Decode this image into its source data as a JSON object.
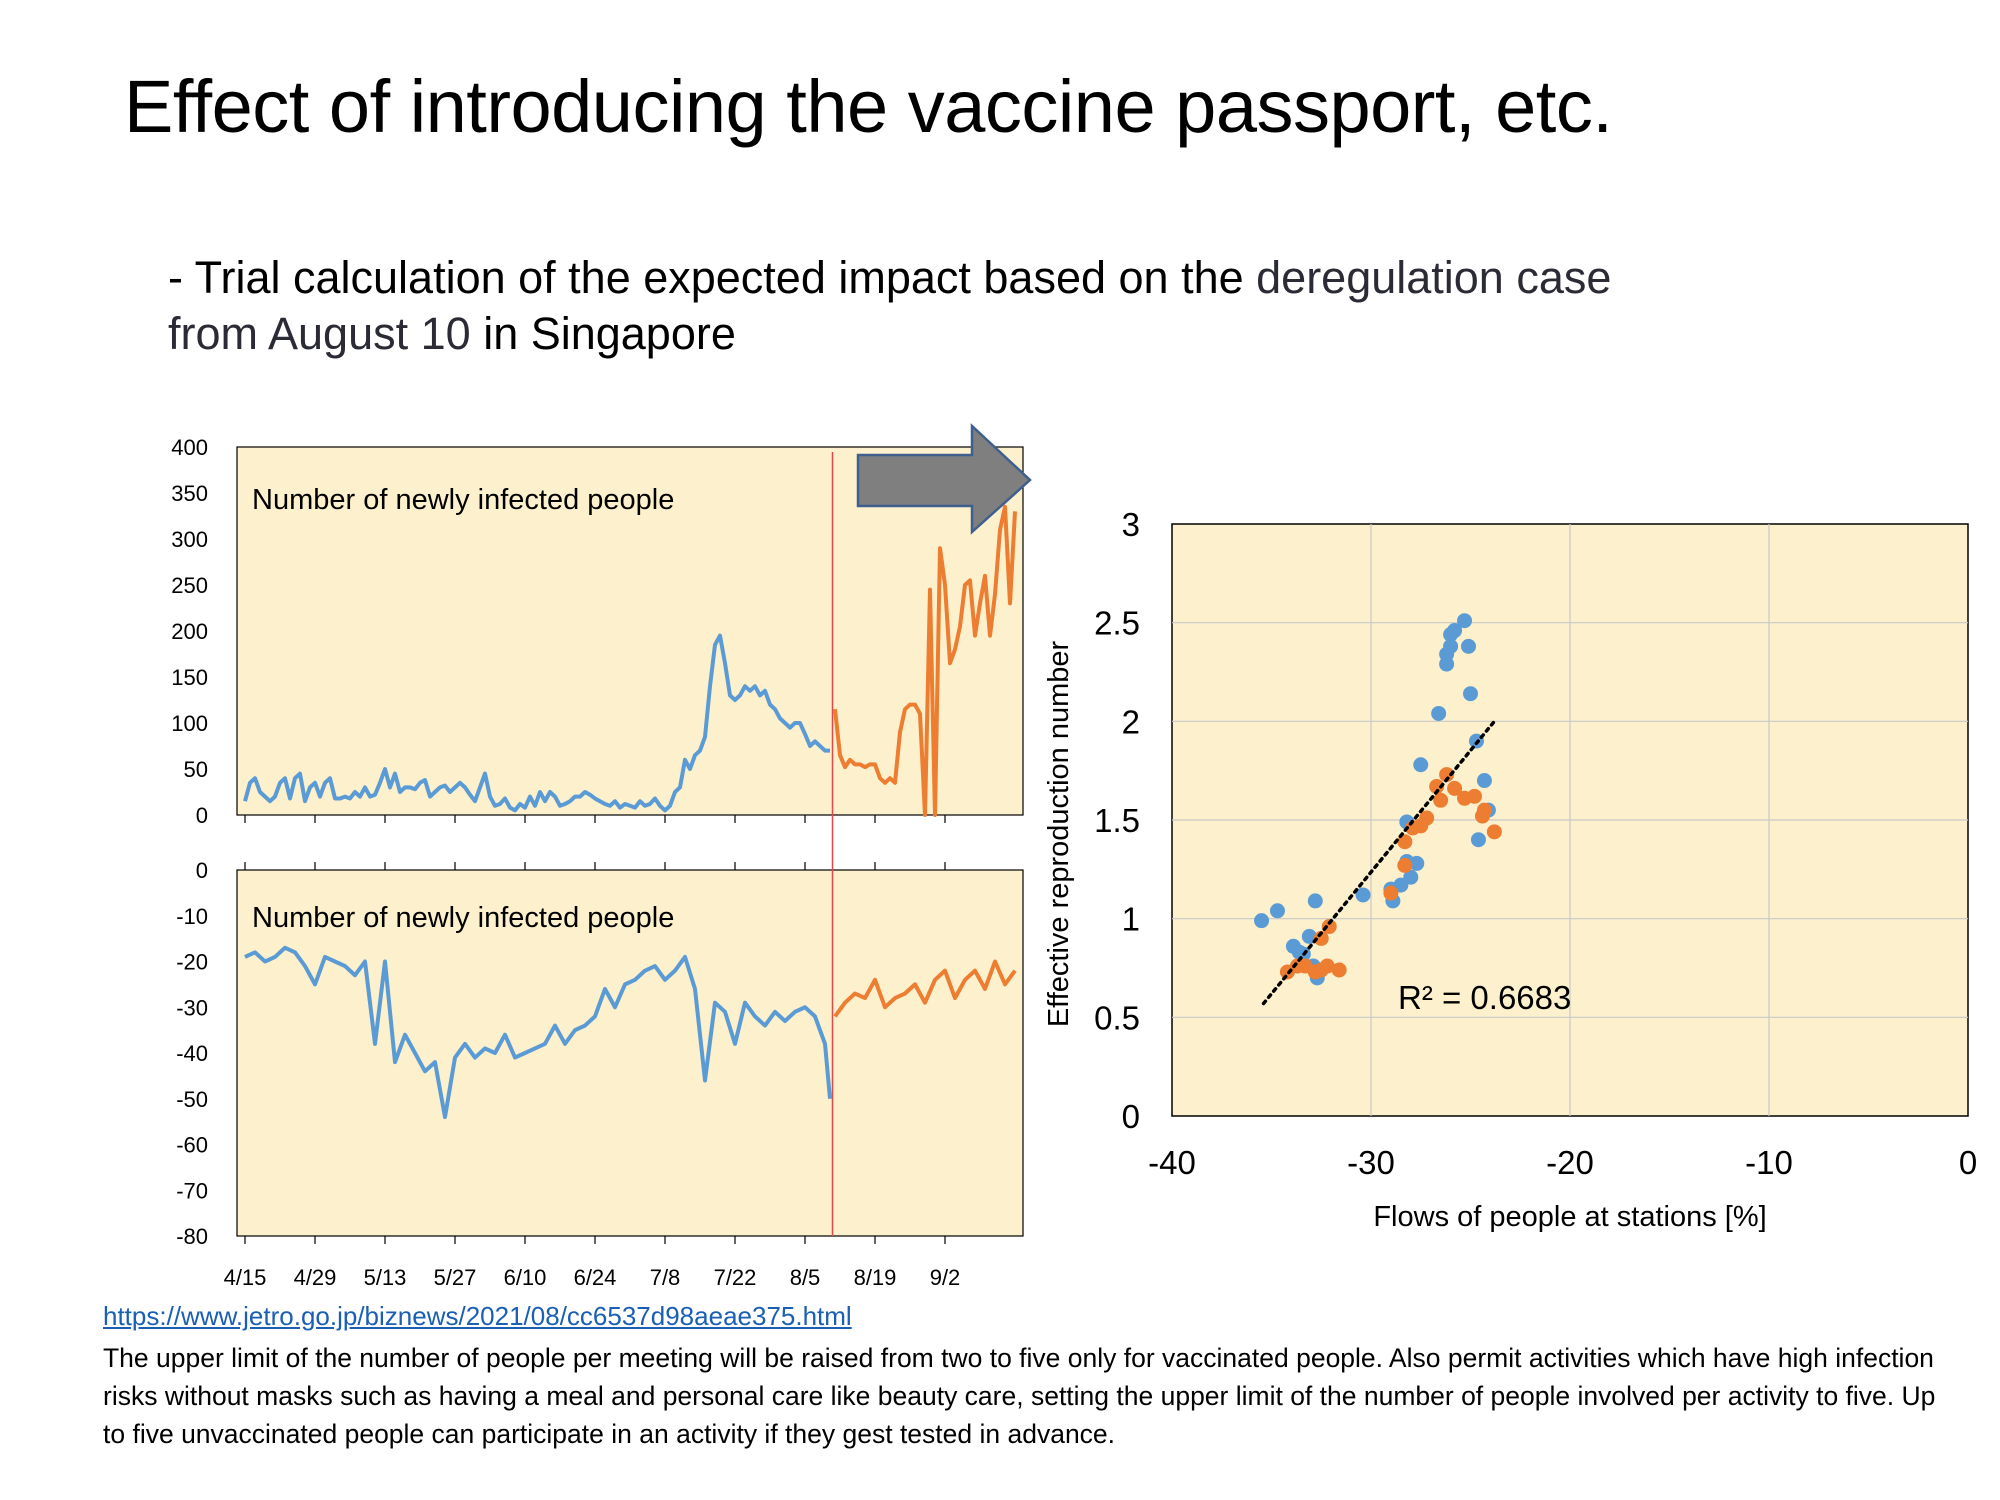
{
  "slide": {
    "title": "Effect of introducing the vaccine passport, etc.",
    "subtitle_plain": "- Trial calculation of the expected impact based on the ",
    "subtitle_highlight_1": "deregulation case",
    "subtitle_highlight_2": "from August 10",
    "subtitle_end": " in Singapore",
    "source_url": "https://www.jetro.go.jp/biznews/2021/08/cc6537d98aeae375.html",
    "footnote": "The upper limit of the number of people per meeting will be raised from two to five only for vaccinated people. Also permit activities which have high infection risks without masks such as having a meal and personal care like beauty care, setting the upper limit of the number of people involved per activity to five. Up to five unvaccinated people can participate in an activity if they gest tested in advance."
  },
  "colors": {
    "plot_bg": "#fdf0cc",
    "before": "#5b9bd5",
    "after": "#ed7d31",
    "divider": "#e0484a",
    "arrow": "#7f7f7f",
    "arrow_edge": "#3f5f8f"
  },
  "chart_data": [
    {
      "type": "line",
      "title": "Number of newly infected people",
      "x_tick_labels": [
        "4/15",
        "4/29",
        "5/13",
        "5/27",
        "6/10",
        "6/24",
        "7/8",
        "7/22",
        "8/5",
        "8/19",
        "9/2"
      ],
      "ylim": [
        0,
        400
      ],
      "yticks": [
        0,
        50,
        100,
        150,
        200,
        250,
        300,
        350,
        400
      ],
      "grid": false,
      "series": [
        {
          "segment": "before",
          "x": [
            0,
            1,
            2,
            3,
            4,
            5,
            6,
            7,
            8,
            9,
            10,
            11,
            12,
            13,
            14,
            15,
            16,
            17,
            18,
            19,
            20,
            21,
            22,
            23,
            24,
            25,
            26,
            27,
            28,
            29,
            30,
            31,
            32,
            33,
            34,
            35,
            36,
            37,
            38,
            39,
            40,
            41,
            42,
            43,
            44,
            45,
            46,
            47,
            48,
            49,
            50,
            51,
            52,
            53,
            54,
            55,
            56,
            57,
            58,
            59,
            60,
            61,
            62,
            63,
            64,
            65,
            66,
            67,
            68,
            69,
            70,
            71,
            72,
            73,
            74,
            75,
            76,
            77,
            78,
            79,
            80,
            81,
            82,
            83,
            84,
            85,
            86,
            87,
            88,
            89,
            90,
            91,
            92,
            93,
            94,
            95,
            96,
            97,
            98,
            99,
            100,
            101,
            102,
            103,
            104,
            105,
            106,
            107,
            108,
            109,
            110,
            111,
            112,
            113,
            114,
            115,
            116,
            117
          ],
          "values": [
            15,
            35,
            40,
            25,
            20,
            15,
            20,
            35,
            40,
            18,
            40,
            45,
            15,
            30,
            35,
            20,
            35,
            40,
            18,
            18,
            20,
            18,
            25,
            20,
            30,
            20,
            22,
            35,
            50,
            30,
            45,
            25,
            30,
            30,
            28,
            35,
            38,
            20,
            25,
            30,
            32,
            25,
            30,
            35,
            30,
            22,
            15,
            30,
            45,
            20,
            10,
            12,
            18,
            8,
            5,
            12,
            8,
            20,
            10,
            25,
            15,
            25,
            20,
            10,
            12,
            15,
            20,
            20,
            25,
            22,
            18,
            15,
            12,
            10,
            15,
            8,
            12,
            10,
            8,
            15,
            10,
            12,
            18,
            10,
            5,
            10,
            25,
            30,
            60,
            50,
            65,
            70,
            85,
            140,
            185,
            195,
            165,
            130,
            125,
            130,
            140,
            135,
            140,
            130,
            135,
            120,
            115,
            105,
            100,
            95,
            100,
            100,
            88,
            75,
            80,
            75,
            70,
            70
          ]
        },
        {
          "segment": "after",
          "x": [
            118,
            119,
            120,
            121,
            122,
            123,
            124,
            125,
            126,
            127,
            128,
            129,
            130,
            131,
            132,
            133,
            134,
            135,
            136,
            137,
            138,
            139,
            140,
            141,
            142,
            143,
            144,
            145,
            146,
            147,
            148,
            149,
            150,
            151,
            152,
            153,
            154
          ],
          "values": [
            115,
            65,
            52,
            60,
            55,
            55,
            52,
            55,
            55,
            40,
            35,
            40,
            35,
            90,
            115,
            120,
            120,
            110,
            0,
            245,
            0,
            290,
            250,
            165,
            180,
            205,
            250,
            255,
            195,
            230,
            260,
            195,
            240,
            310,
            335,
            230,
            330
          ]
        }
      ]
    },
    {
      "type": "line",
      "title": "Number of newly infected people",
      "x_tick_labels": [
        "4/15",
        "4/29",
        "5/13",
        "5/27",
        "6/10",
        "6/24",
        "7/8",
        "7/22",
        "8/5",
        "8/19",
        "9/2"
      ],
      "ylim": [
        -80,
        0
      ],
      "yticks": [
        0,
        -10,
        -20,
        -30,
        -40,
        -50,
        -60,
        -70,
        -80
      ],
      "grid": false,
      "series": [
        {
          "segment": "before",
          "x": [
            0,
            2,
            4,
            6,
            8,
            10,
            12,
            14,
            16,
            18,
            20,
            22,
            24,
            26,
            28,
            30,
            32,
            34,
            36,
            38,
            40,
            42,
            44,
            46,
            48,
            50,
            52,
            54,
            56,
            58,
            60,
            62,
            64,
            66,
            68,
            70,
            72,
            74,
            76,
            78,
            80,
            82,
            84,
            86,
            88,
            90,
            92,
            94,
            96,
            98,
            100,
            102,
            104,
            106,
            108,
            110,
            112,
            114,
            116,
            117
          ],
          "values": [
            -19,
            -18,
            -20,
            -19,
            -17,
            -18,
            -21,
            -25,
            -19,
            -20,
            -21,
            -23,
            -20,
            -38,
            -20,
            -42,
            -36,
            -40,
            -44,
            -42,
            -54,
            -41,
            -38,
            -41,
            -39,
            -40,
            -36,
            -41,
            -40,
            -39,
            -38,
            -34,
            -38,
            -35,
            -34,
            -32,
            -26,
            -30,
            -25,
            -24,
            -22,
            -21,
            -24,
            -22,
            -19,
            -26,
            -46,
            -29,
            -31,
            -38,
            -29,
            -32,
            -34,
            -31,
            -33,
            -31,
            -30,
            -32,
            -38,
            -50
          ]
        },
        {
          "segment": "after",
          "x": [
            118,
            120,
            122,
            124,
            126,
            128,
            130,
            132,
            134,
            136,
            138,
            140,
            142,
            144,
            146,
            148,
            150,
            152,
            154
          ],
          "values": [
            -32,
            -29,
            -27,
            -28,
            -24,
            -30,
            -28,
            -27,
            -25,
            -29,
            -24,
            -22,
            -28,
            -24,
            -22,
            -26,
            -20,
            -25,
            -22
          ]
        }
      ]
    },
    {
      "type": "scatter",
      "xlabel": "Flows of people at stations [%]",
      "ylabel": "Effective reproduction number",
      "xlim": [
        -40,
        0
      ],
      "ylim": [
        0,
        3
      ],
      "xticks": [
        -40,
        -30,
        -20,
        -10,
        0
      ],
      "yticks": [
        0,
        0.5,
        1,
        1.5,
        2,
        2.5,
        3
      ],
      "grid": true,
      "annotation": "R² = 0.6683",
      "trendline": {
        "style": "dotted",
        "from": [
          -35.4,
          0.57
        ],
        "to": [
          -23.8,
          2.0
        ]
      },
      "series": [
        {
          "segment": "before",
          "points": [
            [
              -35.5,
              0.99
            ],
            [
              -34.7,
              1.04
            ],
            [
              -33.9,
              0.86
            ],
            [
              -33.4,
              0.82
            ],
            [
              -32.8,
              1.09
            ],
            [
              -33.1,
              0.91
            ],
            [
              -32.9,
              0.76
            ],
            [
              -32.7,
              0.7
            ],
            [
              -33.6,
              0.83
            ],
            [
              -30.4,
              1.12
            ],
            [
              -28.9,
              1.09
            ],
            [
              -28.2,
              1.29
            ],
            [
              -28.0,
              1.21
            ],
            [
              -27.7,
              1.28
            ],
            [
              -28.5,
              1.17
            ],
            [
              -29.0,
              1.15
            ],
            [
              -28.2,
              1.49
            ],
            [
              -27.5,
              1.78
            ],
            [
              -26.6,
              2.04
            ],
            [
              -26.2,
              2.29
            ],
            [
              -26.2,
              2.34
            ],
            [
              -26.0,
              2.38
            ],
            [
              -26.0,
              2.44
            ],
            [
              -25.8,
              2.46
            ],
            [
              -25.3,
              2.51
            ],
            [
              -25.1,
              2.38
            ],
            [
              -25.0,
              2.14
            ],
            [
              -24.7,
              1.9
            ],
            [
              -24.3,
              1.7
            ],
            [
              -24.1,
              1.55
            ],
            [
              -24.6,
              1.4
            ]
          ]
        },
        {
          "segment": "after",
          "points": [
            [
              -34.2,
              0.73
            ],
            [
              -33.7,
              0.76
            ],
            [
              -33.3,
              0.76
            ],
            [
              -32.8,
              0.73
            ],
            [
              -32.5,
              0.74
            ],
            [
              -32.2,
              0.76
            ],
            [
              -32.1,
              0.96
            ],
            [
              -31.6,
              0.74
            ],
            [
              -32.5,
              0.9
            ],
            [
              -29.0,
              1.13
            ],
            [
              -28.3,
              1.39
            ],
            [
              -27.9,
              1.46
            ],
            [
              -27.5,
              1.47
            ],
            [
              -27.2,
              1.51
            ],
            [
              -26.7,
              1.67
            ],
            [
              -26.5,
              1.6
            ],
            [
              -26.2,
              1.73
            ],
            [
              -25.8,
              1.66
            ],
            [
              -25.3,
              1.61
            ],
            [
              -24.8,
              1.62
            ],
            [
              -24.3,
              1.55
            ],
            [
              -24.4,
              1.52
            ],
            [
              -23.8,
              1.44
            ],
            [
              -28.3,
              1.27
            ]
          ]
        }
      ]
    }
  ]
}
